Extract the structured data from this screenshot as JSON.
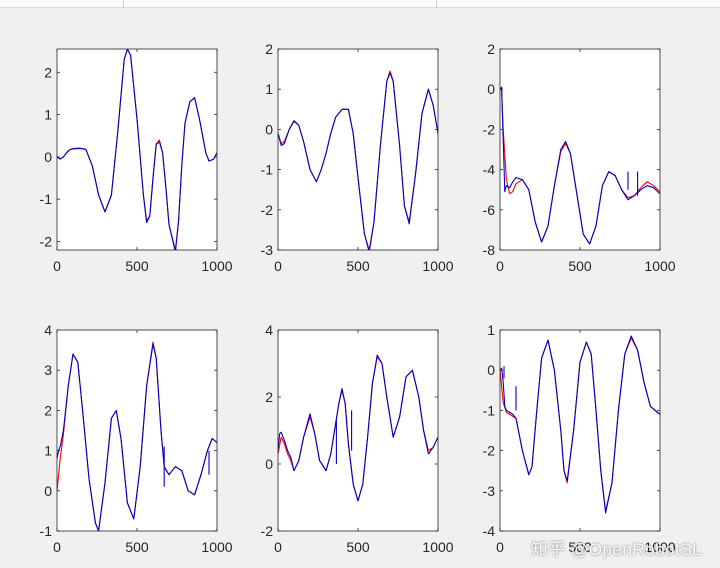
{
  "watermark": "知乎 @OpenRobotSL",
  "chart_data": [
    {
      "type": "line",
      "xlim": [
        0,
        1000
      ],
      "ylim": [
        -2.2,
        2.55
      ],
      "xticks": [
        0,
        500,
        1000
      ],
      "yticks": [
        -2,
        -1,
        0,
        1,
        2
      ],
      "series": [
        {
          "color": "#ff0000",
          "x": [
            0,
            20,
            40,
            60,
            80,
            100,
            140,
            180,
            220,
            260,
            300,
            340,
            380,
            420,
            440,
            460,
            500,
            540,
            560,
            580,
            600,
            620,
            640,
            660,
            680,
            700,
            740,
            760,
            780,
            800,
            830,
            860,
            890,
            910,
            930,
            950,
            980,
            1000
          ],
          "y": [
            0,
            -0.05,
            0,
            0.1,
            0.17,
            0.2,
            0.21,
            0.18,
            -0.2,
            -0.9,
            -1.3,
            -0.9,
            0.6,
            2.3,
            2.55,
            2.4,
            0.9,
            -0.9,
            -1.5,
            -1.4,
            -0.5,
            0.3,
            0.4,
            0.1,
            -0.7,
            -1.6,
            -2.2,
            -1.5,
            -0.2,
            0.8,
            1.3,
            1.4,
            0.9,
            0.5,
            0.1,
            -0.1,
            -0.05,
            0.1
          ]
        },
        {
          "color": "#0000cc",
          "x": [
            0,
            20,
            40,
            60,
            80,
            100,
            140,
            180,
            220,
            260,
            300,
            340,
            380,
            420,
            440,
            460,
            500,
            540,
            560,
            580,
            600,
            620,
            640,
            660,
            680,
            700,
            740,
            760,
            780,
            800,
            830,
            860,
            890,
            910,
            930,
            950,
            980,
            1000
          ],
          "y": [
            0,
            -0.05,
            0,
            0.1,
            0.17,
            0.19,
            0.2,
            0.18,
            -0.2,
            -0.9,
            -1.3,
            -0.9,
            0.6,
            2.3,
            2.55,
            2.4,
            0.9,
            -0.9,
            -1.55,
            -1.4,
            -0.5,
            0.3,
            0.35,
            0.1,
            -0.7,
            -1.6,
            -2.25,
            -1.5,
            -0.2,
            0.8,
            1.3,
            1.4,
            0.9,
            0.5,
            0.1,
            -0.1,
            -0.05,
            0.1
          ]
        }
      ]
    },
    {
      "type": "line",
      "xlim": [
        0,
        1000
      ],
      "ylim": [
        -3,
        2
      ],
      "xticks": [
        0,
        500,
        1000
      ],
      "yticks": [
        -3,
        -2,
        -1,
        0,
        1,
        2
      ],
      "series": [
        {
          "color": "#ff0000",
          "x": [
            0,
            20,
            40,
            70,
            100,
            130,
            160,
            200,
            240,
            270,
            300,
            330,
            360,
            400,
            440,
            470,
            500,
            540,
            570,
            600,
            640,
            680,
            700,
            720,
            760,
            790,
            820,
            860,
            900,
            940,
            970,
            1000
          ],
          "y": [
            -0.1,
            -0.35,
            -0.3,
            0,
            0.2,
            0.1,
            -0.3,
            -1.0,
            -1.3,
            -1.0,
            -0.6,
            -0.1,
            0.3,
            0.5,
            0.5,
            -0.1,
            -1.2,
            -2.6,
            -3.0,
            -2.3,
            -0.4,
            1.2,
            1.45,
            1.2,
            -0.4,
            -1.9,
            -2.3,
            -1.1,
            0.4,
            1.0,
            0.6,
            -0.1
          ]
        },
        {
          "color": "#0000cc",
          "x": [
            0,
            20,
            40,
            70,
            100,
            130,
            160,
            200,
            240,
            270,
            300,
            330,
            360,
            400,
            440,
            470,
            500,
            540,
            570,
            600,
            640,
            680,
            700,
            720,
            760,
            790,
            820,
            860,
            900,
            940,
            970,
            1000
          ],
          "y": [
            -0.1,
            -0.4,
            -0.35,
            0,
            0.22,
            0.1,
            -0.3,
            -1.0,
            -1.3,
            -1.0,
            -0.6,
            -0.1,
            0.3,
            0.5,
            0.5,
            -0.1,
            -1.2,
            -2.6,
            -3.05,
            -2.3,
            -0.4,
            1.2,
            1.4,
            1.2,
            -0.4,
            -1.9,
            -2.35,
            -1.1,
            0.4,
            1.0,
            0.6,
            -0.1
          ]
        }
      ]
    },
    {
      "type": "line",
      "xlim": [
        0,
        1000
      ],
      "ylim": [
        -8,
        2
      ],
      "xticks": [
        0,
        500,
        1000
      ],
      "yticks": [
        -8,
        -6,
        -4,
        -2,
        0,
        2
      ],
      "series": [
        {
          "color": "#ff0000",
          "x": [
            0,
            10,
            20,
            40,
            60,
            80,
            100,
            140,
            180,
            220,
            260,
            300,
            340,
            380,
            410,
            440,
            480,
            520,
            560,
            600,
            640,
            680,
            720,
            760,
            800,
            840,
            880,
            920,
            960,
            1000
          ],
          "y": [
            0,
            0,
            -2,
            -4.5,
            -5.2,
            -5.1,
            -4.7,
            -4.5,
            -5.0,
            -6.6,
            -7.6,
            -6.8,
            -4.8,
            -3.1,
            -2.7,
            -3.2,
            -5.2,
            -7.2,
            -7.7,
            -6.8,
            -4.8,
            -4.1,
            -4.3,
            -5.0,
            -5.4,
            -5.3,
            -4.9,
            -4.6,
            -4.8,
            -5.1
          ]
        },
        {
          "color": "#0000cc",
          "x": [
            0,
            10,
            20,
            30,
            40,
            60,
            80,
            100,
            140,
            180,
            220,
            260,
            300,
            340,
            380,
            410,
            440,
            480,
            520,
            560,
            600,
            640,
            680,
            720,
            760,
            800,
            840,
            880,
            920,
            960,
            1000
          ],
          "y": [
            0,
            0.1,
            -2.5,
            -5.1,
            -4.8,
            -4.9,
            -4.6,
            -4.4,
            -4.5,
            -5.0,
            -6.6,
            -7.6,
            -6.8,
            -4.8,
            -3.0,
            -2.6,
            -3.2,
            -5.2,
            -7.2,
            -7.7,
            -6.8,
            -4.8,
            -4.1,
            -4.3,
            -5.0,
            -5.5,
            -5.3,
            -5.0,
            -4.8,
            -4.9,
            -5.2
          ]
        }
      ],
      "spikes": [
        {
          "color": "#0000cc",
          "x": 800,
          "y1": -5.0,
          "y2": -4.1
        },
        {
          "color": "#0000cc",
          "x": 860,
          "y1": -5.3,
          "y2": -4.1
        }
      ]
    },
    {
      "type": "line",
      "xlim": [
        0,
        1000
      ],
      "ylim": [
        -1,
        4
      ],
      "xticks": [
        0,
        500,
        1000
      ],
      "yticks": [
        -1,
        0,
        1,
        2,
        3,
        4
      ],
      "series": [
        {
          "color": "#ff0000",
          "x": [
            0,
            20,
            40,
            70,
            100,
            130,
            160,
            200,
            240,
            260,
            300,
            340,
            370,
            400,
            440,
            480,
            520,
            560,
            600,
            620,
            650,
            670,
            700,
            740,
            780,
            820,
            860,
            900,
            940,
            970,
            1000
          ],
          "y": [
            0,
            0.8,
            1.4,
            2.6,
            3.4,
            3.2,
            2.0,
            0.3,
            -0.8,
            -1.0,
            0.2,
            1.8,
            2.0,
            1.3,
            -0.3,
            -0.7,
            0.6,
            2.6,
            3.7,
            3.3,
            1.5,
            0.6,
            0.4,
            0.6,
            0.5,
            0,
            -0.1,
            0.4,
            1.0,
            1.3,
            1.2
          ]
        },
        {
          "color": "#0000cc",
          "x": [
            0,
            10,
            20,
            40,
            70,
            100,
            130,
            160,
            200,
            240,
            260,
            300,
            340,
            370,
            400,
            440,
            480,
            520,
            560,
            600,
            620,
            650,
            670,
            700,
            740,
            780,
            820,
            860,
            900,
            940,
            970,
            1000
          ],
          "y": [
            0.8,
            1.0,
            1.1,
            1.5,
            2.6,
            3.4,
            3.2,
            2.0,
            0.3,
            -0.8,
            -1.0,
            0.2,
            1.8,
            2.0,
            1.3,
            -0.3,
            -0.7,
            0.6,
            2.6,
            3.65,
            3.3,
            1.5,
            0.6,
            0.4,
            0.6,
            0.5,
            0,
            -0.1,
            0.4,
            1.0,
            1.3,
            1.2
          ]
        }
      ],
      "spikes": [
        {
          "color": "#0000cc",
          "x": 670,
          "y1": 0.1,
          "y2": 1.1
        },
        {
          "color": "#0000cc",
          "x": 950,
          "y1": 0.4,
          "y2": 1.0
        }
      ]
    },
    {
      "type": "line",
      "xlim": [
        0,
        1000
      ],
      "ylim": [
        -2,
        4
      ],
      "xticks": [
        0,
        500,
        1000
      ],
      "yticks": [
        -2,
        0,
        2,
        4
      ],
      "series": [
        {
          "color": "#ff0000",
          "x": [
            0,
            20,
            40,
            60,
            80,
            100,
            130,
            160,
            200,
            230,
            260,
            300,
            330,
            360,
            380,
            400,
            420,
            440,
            470,
            500,
            530,
            560,
            590,
            620,
            650,
            680,
            720,
            760,
            800,
            840,
            880,
            910,
            940,
            970,
            1000
          ],
          "y": [
            0.3,
            0.8,
            0.6,
            0.3,
            0.1,
            -0.2,
            0.1,
            0.8,
            1.4,
            0.9,
            0.1,
            -0.2,
            0.3,
            1.2,
            1.8,
            2.2,
            1.8,
            0.6,
            -0.6,
            -1.1,
            -0.6,
            0.8,
            2.4,
            3.2,
            3.0,
            2.0,
            0.8,
            1.4,
            2.6,
            2.8,
            2.0,
            1.0,
            0.4,
            0.5,
            0.8
          ]
        },
        {
          "color": "#0000cc",
          "x": [
            0,
            10,
            20,
            40,
            60,
            80,
            100,
            130,
            160,
            200,
            230,
            260,
            300,
            330,
            360,
            380,
            400,
            420,
            440,
            470,
            500,
            530,
            560,
            590,
            620,
            650,
            680,
            720,
            760,
            800,
            840,
            880,
            910,
            940,
            970,
            1000
          ],
          "y": [
            0.4,
            0.9,
            0.95,
            0.7,
            0.4,
            0.2,
            -0.2,
            0.1,
            0.8,
            1.5,
            0.9,
            0.1,
            -0.2,
            0.3,
            1.2,
            1.8,
            2.25,
            1.8,
            0.6,
            -0.6,
            -1.1,
            -0.6,
            0.8,
            2.4,
            3.25,
            3.0,
            2.0,
            0.8,
            1.4,
            2.6,
            2.8,
            2.0,
            1.0,
            0.3,
            0.5,
            0.8
          ]
        }
      ],
      "spikes": [
        {
          "color": "#0000cc",
          "x": 365,
          "y1": 0,
          "y2": 1.3
        },
        {
          "color": "#0000cc",
          "x": 460,
          "y1": 0.4,
          "y2": 1.6
        }
      ]
    },
    {
      "type": "line",
      "xlim": [
        0,
        1000
      ],
      "ylim": [
        -4,
        1
      ],
      "xticks": [
        0,
        500,
        1000
      ],
      "yticks": [
        -4,
        -3,
        -2,
        -1,
        0,
        1
      ],
      "series": [
        {
          "color": "#ff0000",
          "x": [
            0,
            20,
            40,
            60,
            80,
            100,
            140,
            180,
            200,
            230,
            260,
            300,
            340,
            380,
            400,
            420,
            460,
            500,
            540,
            570,
            600,
            630,
            660,
            700,
            740,
            780,
            820,
            860,
            900,
            940,
            970,
            1000
          ],
          "y": [
            0,
            -0.8,
            -1.05,
            -1.1,
            -1.15,
            -1.2,
            -2.0,
            -2.6,
            -2.4,
            -1.0,
            0.3,
            0.75,
            0,
            -1.5,
            -2.5,
            -2.8,
            -1.5,
            0.2,
            0.7,
            0.4,
            -1.0,
            -2.5,
            -3.5,
            -2.8,
            -1.0,
            0.4,
            0.8,
            0.5,
            -0.3,
            -0.9,
            -1.0,
            -1.1
          ]
        },
        {
          "color": "#0000cc",
          "x": [
            0,
            10,
            20,
            30,
            40,
            60,
            80,
            100,
            140,
            180,
            200,
            230,
            260,
            300,
            340,
            380,
            400,
            420,
            460,
            500,
            540,
            570,
            600,
            630,
            660,
            700,
            740,
            780,
            820,
            860,
            900,
            940,
            970,
            1000
          ],
          "y": [
            0,
            0.05,
            -0.3,
            -0.9,
            -1.0,
            -1.05,
            -1.1,
            -1.2,
            -2.0,
            -2.6,
            -2.4,
            -1.0,
            0.3,
            0.75,
            0,
            -1.5,
            -2.5,
            -2.75,
            -1.5,
            0.2,
            0.7,
            0.4,
            -1.0,
            -2.5,
            -3.55,
            -2.8,
            -1.0,
            0.4,
            0.85,
            0.5,
            -0.3,
            -0.9,
            -1.0,
            -1.1
          ]
        }
      ],
      "spikes": [
        {
          "color": "#0000cc",
          "x": 100,
          "y1": -1.0,
          "y2": -0.4
        },
        {
          "color": "#0000cc",
          "x": 25,
          "y1": -0.2,
          "y2": 0.1
        }
      ]
    }
  ]
}
